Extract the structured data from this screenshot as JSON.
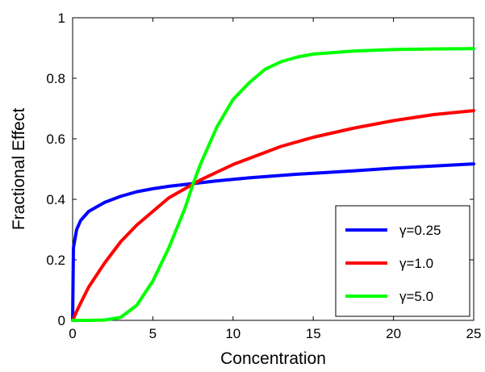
{
  "chart_data": {
    "type": "line",
    "title": "",
    "xlabel": "Concentration",
    "ylabel": "Fractional Effect",
    "xlim": [
      0,
      25
    ],
    "ylim": [
      0,
      1
    ],
    "x_ticks": [
      0,
      5,
      10,
      15,
      20,
      25
    ],
    "y_ticks": [
      0,
      0.2,
      0.4,
      0.6,
      0.8,
      1
    ],
    "x_tick_labels": [
      "0",
      "5",
      "10",
      "15",
      "20",
      "25"
    ],
    "y_tick_labels": [
      "0",
      "0.2",
      "0.4",
      "0.6",
      "0.8",
      "1"
    ],
    "grid": false,
    "legend_position": "bottom-right",
    "x": [
      0,
      0.05,
      0.25,
      0.5,
      1,
      2,
      3,
      4,
      5,
      6,
      7,
      7.5,
      8,
      9,
      10,
      11,
      12,
      13,
      14,
      15,
      17.5,
      20,
      22.5,
      25
    ],
    "series": [
      {
        "name": "γ=0.25",
        "color": "#0000ff",
        "values": [
          0,
          0.24,
          0.3,
          0.33,
          0.36,
          0.39,
          0.41,
          0.425,
          0.435,
          0.443,
          0.449,
          0.452,
          0.455,
          0.461,
          0.466,
          0.471,
          0.475,
          0.479,
          0.483,
          0.486,
          0.494,
          0.503,
          0.51,
          0.517
        ]
      },
      {
        "name": "γ=1.0",
        "color": "#ff0000",
        "values": [
          0,
          0.005,
          0.03,
          0.057,
          0.11,
          0.19,
          0.26,
          0.315,
          0.36,
          0.405,
          0.435,
          0.45,
          0.465,
          0.49,
          0.515,
          0.535,
          0.555,
          0.575,
          0.59,
          0.605,
          0.635,
          0.66,
          0.68,
          0.693
        ]
      },
      {
        "name": "γ=5.0",
        "color": "#00ff00",
        "values": [
          0,
          0,
          0,
          0,
          0,
          0.001,
          0.01,
          0.05,
          0.13,
          0.24,
          0.37,
          0.45,
          0.52,
          0.64,
          0.73,
          0.785,
          0.83,
          0.855,
          0.87,
          0.88,
          0.89,
          0.895,
          0.897,
          0.898
        ]
      }
    ]
  }
}
